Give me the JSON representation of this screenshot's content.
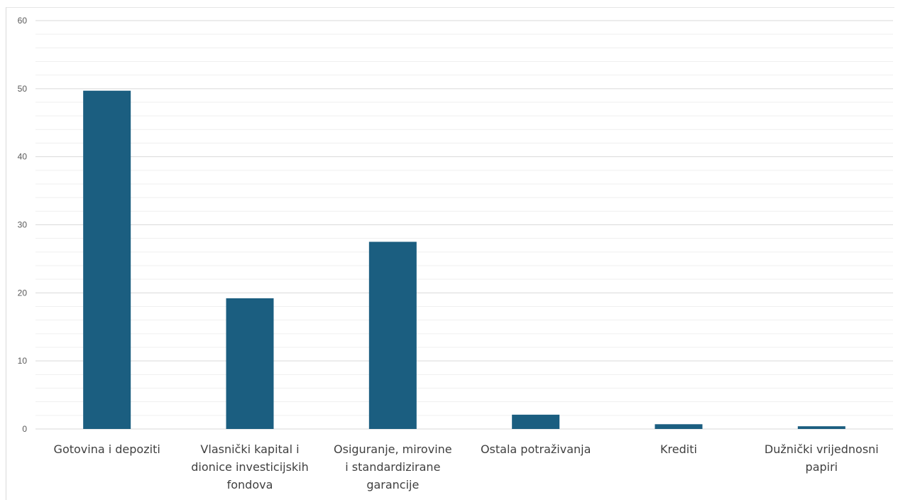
{
  "chart_data": {
    "type": "bar",
    "categories": [
      [
        "Gotovina i depoziti"
      ],
      [
        "Vlasnički kapital i",
        "dionice investicijskih",
        "fondova"
      ],
      [
        "Osiguranje, mirovine",
        "i standardizirane",
        "garancije"
      ],
      [
        "Ostala potraživanja"
      ],
      [
        "Krediti"
      ],
      [
        "Dužnički vrijednosni",
        "papiri"
      ]
    ],
    "values": [
      49.7,
      19.2,
      27.5,
      2.1,
      0.7,
      0.4
    ],
    "ylim": [
      0,
      60
    ],
    "yticks": [
      "0",
      "10",
      "20",
      "30",
      "40",
      "50",
      "60"
    ],
    "major_step": 10,
    "minor_step": 2,
    "grid": true,
    "legend": "none",
    "bar_color": "#1b5e80",
    "major_grid_color": "#d9d9d9",
    "minor_grid_color": "#efefef"
  }
}
